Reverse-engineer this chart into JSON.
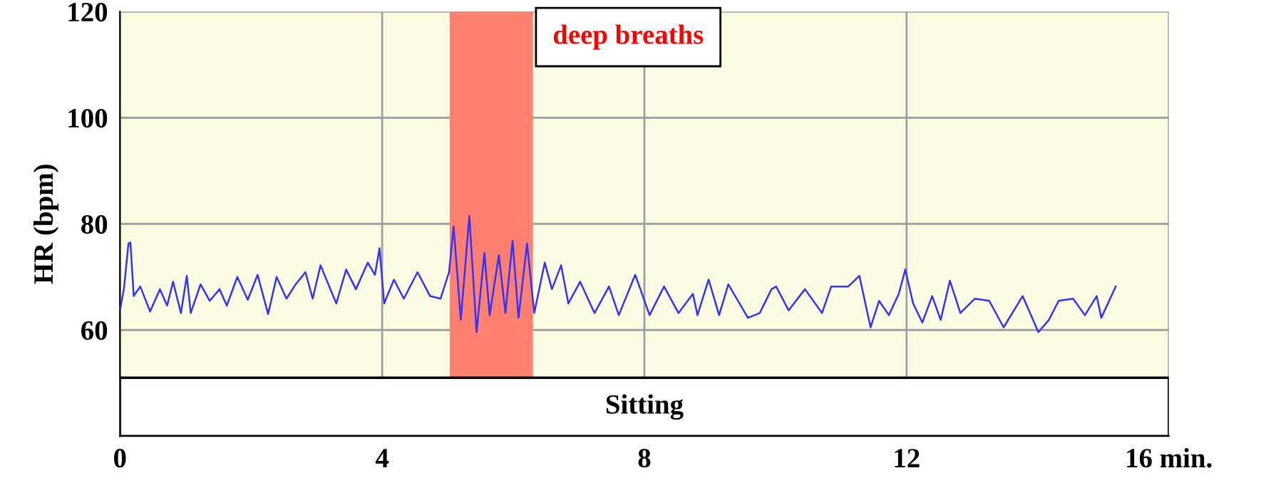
{
  "chart_data": {
    "type": "line",
    "ylabel": "HR (bpm)",
    "x": [
      0.0,
      0.06,
      0.13,
      0.16,
      0.21,
      0.31,
      0.46,
      0.61,
      0.72,
      0.81,
      0.93,
      1.02,
      1.08,
      1.23,
      1.37,
      1.52,
      1.63,
      1.79,
      1.95,
      2.1,
      2.26,
      2.39,
      2.54,
      2.68,
      2.83,
      2.94,
      3.06,
      3.3,
      3.45,
      3.6,
      3.78,
      3.89,
      3.96,
      4.03,
      4.18,
      4.33,
      4.54,
      4.73,
      4.89,
      5.02,
      5.09,
      5.2,
      5.33,
      5.44,
      5.56,
      5.64,
      5.78,
      5.88,
      5.99,
      6.08,
      6.21,
      6.32,
      6.48,
      6.59,
      6.73,
      6.84,
      7.02,
      7.24,
      7.46,
      7.61,
      7.86,
      8.08,
      8.3,
      8.52,
      8.74,
      8.81,
      8.98,
      9.14,
      9.28,
      9.58,
      9.76,
      9.94,
      10.01,
      10.2,
      10.45,
      10.71,
      10.85,
      11.11,
      11.28,
      11.45,
      11.58,
      11.73,
      11.88,
      11.98,
      12.1,
      12.24,
      12.39,
      12.52,
      12.66,
      12.82,
      13.04,
      13.26,
      13.48,
      13.77,
      14.01,
      14.17,
      14.32,
      14.54,
      14.72,
      14.9,
      14.97,
      15.19
    ],
    "series": [
      {
        "color": "#3333ff",
        "values": [
          63.7,
          67.7,
          76.3,
          76.5,
          66.4,
          68.2,
          63.5,
          67.7,
          64.6,
          69.1,
          63.2,
          70.2,
          63.2,
          68.6,
          65.5,
          67.7,
          64.6,
          70.0,
          65.7,
          70.4,
          63.0,
          70.0,
          65.9,
          68.6,
          70.9,
          65.9,
          72.2,
          65.0,
          71.4,
          67.7,
          72.7,
          70.4,
          75.4,
          65.0,
          69.5,
          65.9,
          70.9,
          66.4,
          65.9,
          70.9,
          79.5,
          61.9,
          81.5,
          59.6,
          74.5,
          62.8,
          74.1,
          63.2,
          76.8,
          62.3,
          76.3,
          63.2,
          72.7,
          67.7,
          72.2,
          65.0,
          69.1,
          63.2,
          68.2,
          62.8,
          70.4,
          62.8,
          68.2,
          63.2,
          66.8,
          62.8,
          69.5,
          62.8,
          68.6,
          62.3,
          63.2,
          67.7,
          68.2,
          63.7,
          67.7,
          63.2,
          68.2,
          68.2,
          70.2,
          60.5,
          65.5,
          62.8,
          66.8,
          71.4,
          65.0,
          61.4,
          66.4,
          61.9,
          69.3,
          63.2,
          65.9,
          65.5,
          60.5,
          66.4,
          59.6,
          61.9,
          65.5,
          65.9,
          62.8,
          66.4,
          62.3,
          68.2
        ]
      }
    ],
    "xlim": [
      0,
      16
    ],
    "xticks": [
      0,
      4,
      8,
      12,
      {
        "value": 16,
        "label": "16 min."
      }
    ],
    "ylim": [
      40,
      120
    ],
    "yticks": [
      60,
      80,
      100,
      120
    ],
    "grid": true,
    "bands": [
      {
        "axis": "x",
        "from": 5.03,
        "to": 6.3,
        "label": "deep breaths",
        "color": "#ff8070"
      },
      {
        "axis": "y",
        "from": 40,
        "to": 51,
        "label": "Sitting",
        "color": "#ffffff"
      }
    ]
  }
}
